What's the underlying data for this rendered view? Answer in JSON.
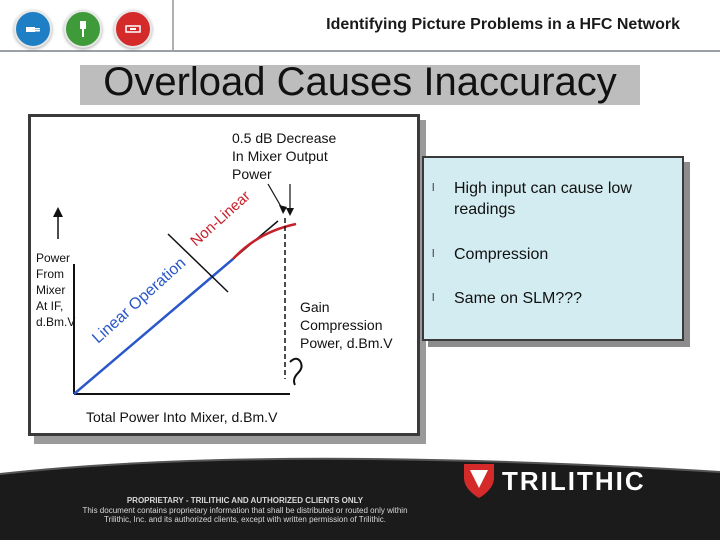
{
  "header": {
    "title": "Identifying Picture Problems in a HFC Network",
    "nav_icons": [
      {
        "name": "blue-plug-icon",
        "color": "#1f7fc4"
      },
      {
        "name": "green-cable-icon",
        "color": "#3f9a3a"
      },
      {
        "name": "red-connector-icon",
        "color": "#d42a2a"
      }
    ]
  },
  "slide": {
    "title": "Overload Causes Inaccuracy"
  },
  "chart": {
    "annotation_decrease": [
      "0.5 dB Decrease",
      "In Mixer Output",
      "Power"
    ],
    "y_label": [
      "Power",
      "From",
      "Mixer",
      "At IF,",
      "d.Bm.V"
    ],
    "x_label": "Total Power Into Mixer, d.Bm.V",
    "gain_label": [
      "Gain",
      "Compression",
      "Power, d.Bm.V"
    ],
    "linear_label": "Linear Operation",
    "nonlinear_label": "Non-Linear",
    "colors": {
      "linear": "#2a57c9",
      "nonlinear": "#c8202a",
      "axis": "#111111"
    }
  },
  "bullets": [
    {
      "mark": "l",
      "text": "High input can cause low readings"
    },
    {
      "mark": "l",
      "text": "Compression"
    },
    {
      "mark": "l",
      "text": "Same on SLM???"
    }
  ],
  "footer": {
    "lines": [
      "PROPRIETARY - TRILITHIC AND AUTHORIZED CLIENTS ONLY",
      "This document contains proprietary information that shall be distributed or routed only within",
      "Trilithic, Inc. and its authorized clients, except with written permission of Trilithic."
    ],
    "logo": "TRILITHIC",
    "logo_color": "#d42a2a"
  }
}
